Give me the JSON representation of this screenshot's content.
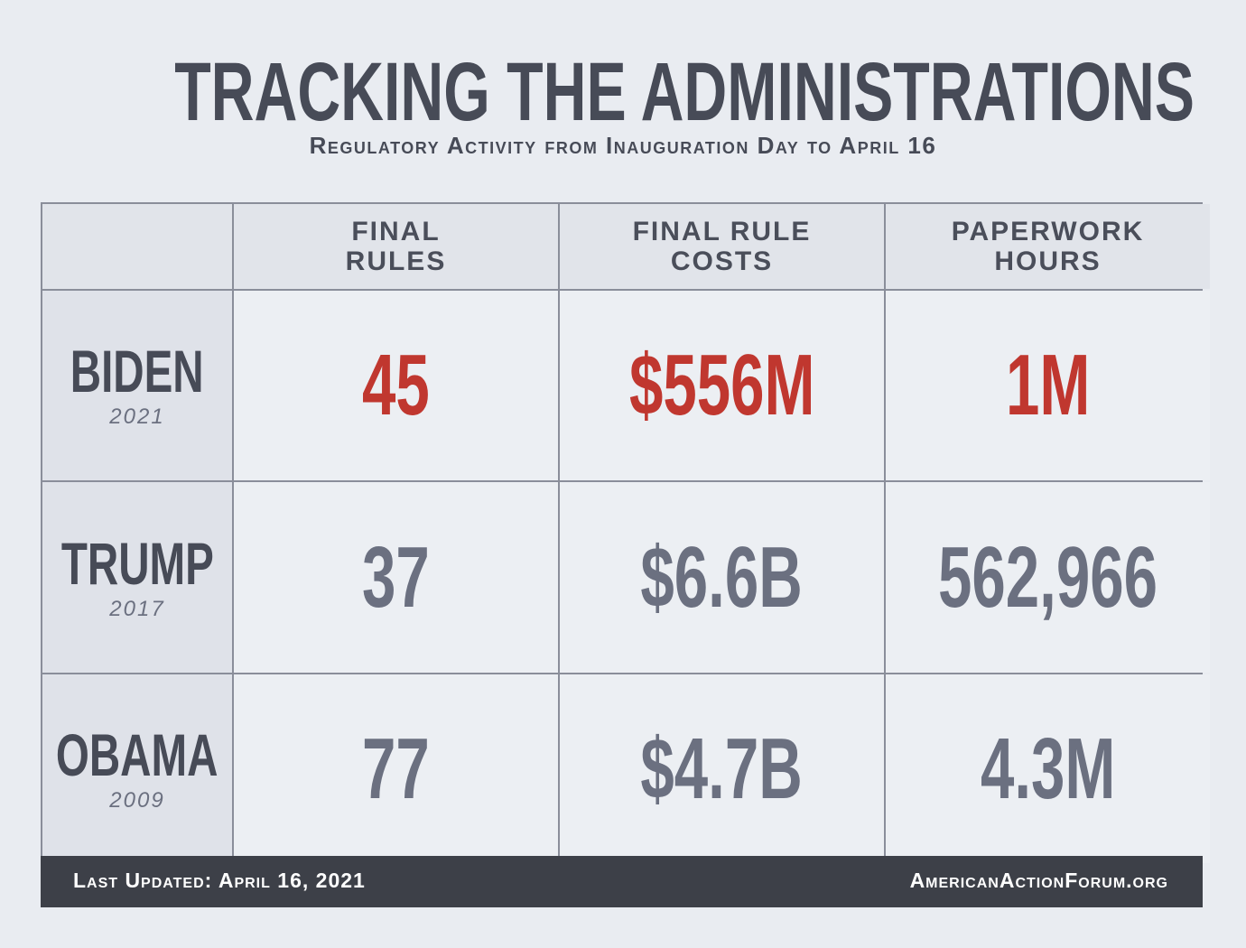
{
  "header": {
    "title": "TRACKING THE ADMINISTRATIONS",
    "subtitle": "Regulatory Activity from Inauguration Day to April 16"
  },
  "table": {
    "columns": [
      "FINAL RULES",
      "FINAL RULE COSTS",
      "PAPERWORK HOURS"
    ],
    "rows": [
      {
        "name": "BIDEN",
        "year": "2021",
        "values": [
          "45",
          "$556M",
          "1M"
        ],
        "color": "#c0372f"
      },
      {
        "name": "TRUMP",
        "year": "2017",
        "values": [
          "37",
          "$6.6B",
          "562,966"
        ],
        "color": "#6b7080"
      },
      {
        "name": "OBAMA",
        "year": "2009",
        "values": [
          "77",
          "$4.7B",
          "4.3M"
        ],
        "color": "#6b7080"
      }
    ]
  },
  "footer": {
    "updated": "Last Updated: April 16, 2021",
    "site": "AmericanActionForum.org"
  }
}
